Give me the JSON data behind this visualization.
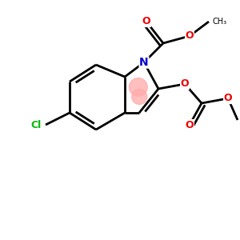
{
  "background_color": "#ffffff",
  "atom_colors": {
    "C": "#000000",
    "N": "#0000cc",
    "O": "#ee0000",
    "Cl": "#00bb00",
    "H": "#000000"
  },
  "bond_color": "#000000",
  "highlight_color": "#ffaaaa",
  "figsize": [
    3.0,
    3.0
  ],
  "dpi": 100,
  "xlim": [
    0,
    10
  ],
  "ylim": [
    0,
    10
  ]
}
